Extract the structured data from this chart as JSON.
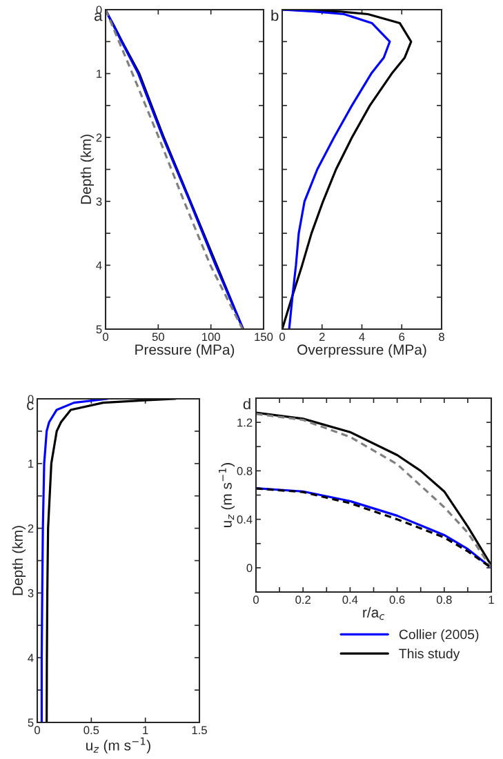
{
  "chart_data": [
    {
      "type": "line",
      "title": "a",
      "xlabel": "Pressure (MPa)",
      "ylabel": "Depth (km)",
      "xlim": [
        0,
        150
      ],
      "xticks": [
        0,
        50,
        100,
        150
      ],
      "ylim": [
        5,
        0
      ],
      "yticks": [
        0,
        {
          "value": 0.5,
          "label": null
        },
        1,
        {
          "value": 1.5,
          "label": null
        },
        2,
        {
          "value": 2.5,
          "label": null
        },
        3,
        {
          "value": 3.5,
          "label": null
        },
        4,
        {
          "value": 4.5,
          "label": null
        },
        5
      ],
      "series": [
        {
          "color": "#000000",
          "x": [
            0,
            3,
            8,
            15.7,
            32,
            55.3,
            80.5,
            104.5,
            130.6
          ],
          "values": [
            0,
            0.1,
            0.25,
            0.5,
            1,
            2,
            3,
            null,
            5
          ]
        },
        {
          "color": "#0000ff",
          "x": [
            0,
            2.8,
            7.6,
            15.2,
            31,
            54.5,
            80,
            104.5,
            130.6
          ],
          "values": [
            0,
            0.1,
            0.25,
            0.5,
            1,
            2,
            3,
            4,
            5
          ]
        },
        {
          "color": "#808080",
          "line_style": "dashed",
          "x": [
            0,
            25.5,
            50.5,
            74.5,
            99.5,
            130
          ],
          "values": [
            0,
            1,
            2,
            3,
            4,
            5
          ]
        }
      ]
    },
    {
      "type": "line",
      "title": "b",
      "xlabel": "Overpressure (MPa)",
      "xlim": [
        0,
        8
      ],
      "xticks": [
        0,
        2,
        4,
        6,
        8
      ],
      "ylim": [
        5,
        0
      ],
      "yticks": [
        0,
        0.5,
        1,
        1.5,
        2,
        2.5,
        3,
        3.5,
        4,
        4.5,
        5
      ],
      "tick_labels": "x",
      "series": [
        {
          "color": "#000000",
          "x": [
            0,
            2.9,
            4.3,
            5.9,
            6.47,
            6.15,
            5.5,
            4.4,
            3.5,
            2.7,
            2.05,
            1.47,
            1.0,
            0.49,
            0
          ],
          "values": [
            0,
            0.03,
            0.07,
            0.21,
            0.5,
            0.75,
            1,
            1.5,
            2,
            2.5,
            3,
            3.5,
            4,
            4.5,
            5
          ]
        },
        {
          "color": "#0000ff",
          "x": [
            0,
            1.6,
            3.1,
            4.5,
            5.4,
            5.1,
            4.47,
            3.5,
            2.6,
            1.76,
            1.12,
            0.83,
            0.69,
            0.51,
            0.35
          ],
          "values": [
            0,
            0.03,
            0.07,
            0.21,
            0.5,
            0.75,
            1,
            1.5,
            2,
            2.5,
            3,
            3.5,
            4,
            4.5,
            5
          ]
        }
      ]
    },
    {
      "type": "line",
      "title": "c",
      "xlabel": "u$_{z}$ (m s$^{−1}$)",
      "ylabel": "Depth (km)",
      "xlim": [
        0,
        1.5
      ],
      "xticks": [
        0,
        0.5,
        1,
        1.5
      ],
      "ylim": [
        5,
        0
      ],
      "yticks": [
        0,
        {
          "value": 0.5,
          "label": null
        },
        1,
        {
          "value": 1.5,
          "label": null
        },
        2,
        {
          "value": 2.5,
          "label": null
        },
        3,
        {
          "value": 3.5,
          "label": null
        },
        4,
        {
          "value": 4.5,
          "label": null
        },
        5
      ],
      "series": [
        {
          "color": "#000000",
          "x": [
            1.28,
            1.02,
            0.61,
            0.31,
            0.22,
            0.18,
            0.13,
            0.1,
            0.093,
            0.089,
            0.087
          ],
          "values": [
            0,
            0.02,
            0.06,
            0.17,
            0.36,
            0.5,
            1,
            2,
            3,
            4,
            5
          ]
        },
        {
          "color": "#0000ff",
          "x": [
            0.65,
            0.34,
            0.18,
            0.11,
            0.087,
            0.064,
            0.052,
            0.046,
            0.041,
            0.041
          ],
          "values": [
            0,
            0.06,
            0.17,
            0.36,
            0.5,
            1,
            2,
            3,
            4,
            5
          ]
        }
      ]
    },
    {
      "type": "line",
      "title": "d",
      "xlabel": "r/a$_{c}$",
      "ylabel": "u$_{z}$ (m s$^{−1}$)",
      "xlim": [
        0,
        1
      ],
      "xticks": [
        0,
        {
          "value": 0.1,
          "label": null
        },
        0.2,
        {
          "value": 0.3,
          "label": null
        },
        0.4,
        {
          "value": 0.5,
          "label": null
        },
        0.6,
        {
          "value": 0.7,
          "label": null
        },
        0.8,
        {
          "value": 0.9,
          "label": null
        },
        1
      ],
      "ylim": [
        -0.2,
        1.4
      ],
      "yticks": [
        {
          "value": -0.2,
          "label": null
        },
        0,
        {
          "value": 0.2,
          "label": null
        },
        0.4,
        {
          "value": 0.6,
          "label": null
        },
        0.8,
        {
          "value": 1.0,
          "label": null
        },
        1.2,
        {
          "value": 1.4,
          "label": null
        }
      ],
      "legend": "bottom",
      "series": [
        {
          "name": "Collier (2005)",
          "color": "#0000ff",
          "x": [
            0,
            0.2,
            0.4,
            0.6,
            0.8,
            0.9,
            1
          ],
          "values": [
            0.656,
            0.63,
            0.55,
            0.43,
            0.27,
            0.155,
            0
          ]
        },
        {
          "name": "This study",
          "color": "#000000",
          "x": [
            0,
            0.2,
            0.4,
            0.6,
            0.7,
            0.8,
            0.9,
            1
          ],
          "values": [
            1.28,
            1.23,
            1.12,
            0.93,
            0.8,
            0.63,
            0.34,
            0.02
          ]
        },
        {
          "color": "#808080",
          "line_style": "dashed",
          "x": [
            0,
            0.2,
            0.4,
            0.6,
            0.8,
            0.9,
            1
          ],
          "values": [
            1.27,
            1.22,
            1.08,
            0.855,
            0.5,
            0.29,
            0
          ]
        },
        {
          "color": "#000000",
          "line_style": "dashed",
          "x": [
            0,
            0.2,
            0.4,
            0.6,
            0.8,
            0.9,
            1
          ],
          "values": [
            0.655,
            0.625,
            0.533,
            0.4,
            0.25,
            0.136,
            0
          ]
        }
      ]
    }
  ]
}
